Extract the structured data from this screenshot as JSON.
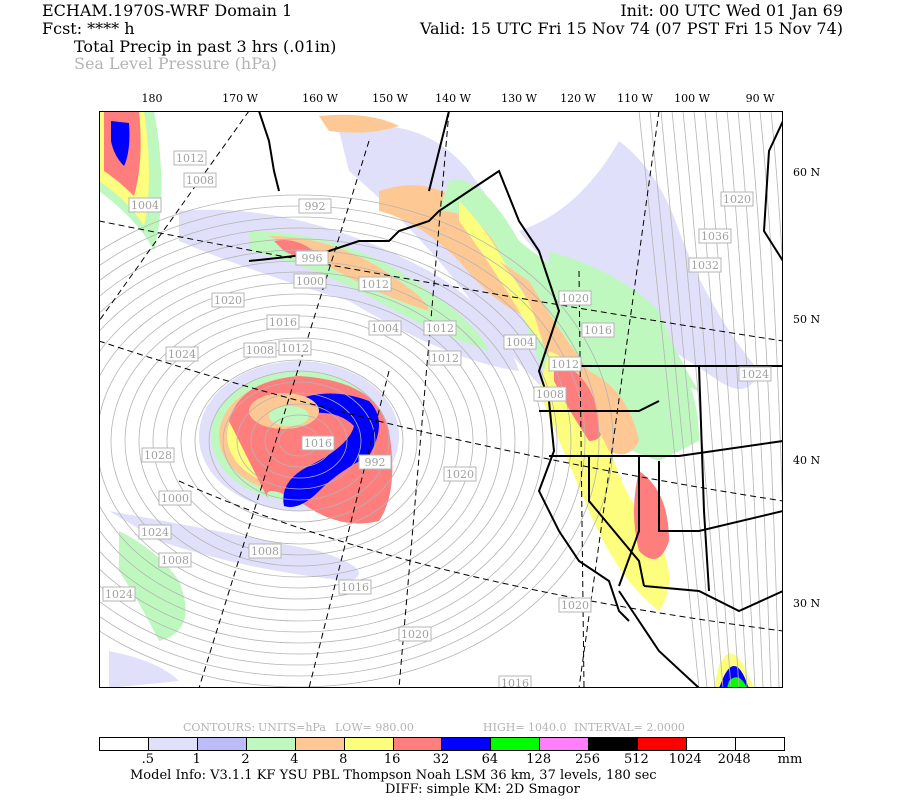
{
  "header": {
    "model_title": "ECHAM.1970S-WRF Domain 1",
    "init": "Init: 00 UTC Wed 01 Jan 69",
    "fcst": "Fcst: **** h",
    "valid": "Valid: 15 UTC Fri 15 Nov 74 (07 PST Fri 15 Nov 74)",
    "field1": "Total Precip in past 3 hrs (.01in)",
    "field2": "Sea Level Pressure (hPa)"
  },
  "map": {
    "lon_labels": [
      "180",
      "170 W",
      "160 W",
      "150 W",
      "140 W",
      "130 W",
      "120 W",
      "110 W",
      "100 W",
      "90 W"
    ],
    "lat_labels": [
      "60 N",
      "50 N",
      "40 N",
      "30 N"
    ],
    "slp_contour_labels": [
      "1012",
      "1008",
      "1004",
      "992",
      "996",
      "1000",
      "1020",
      "1016",
      "1012",
      "1008",
      "1004",
      "1012",
      "1012",
      "1012",
      "1020",
      "1016",
      "1012",
      "1008",
      "1004",
      "1036",
      "1032",
      "1024",
      "1020",
      "1024",
      "1028",
      "992",
      "1000",
      "1008",
      "1008",
      "1016",
      "1016",
      "1024",
      "1024",
      "1020",
      "1020",
      "1020",
      "1016"
    ],
    "colors": {
      "coast": "#000000",
      "contour": "#b4b4b4"
    }
  },
  "contours_info": {
    "label": "CONTOURS:",
    "units": "UNITS=hPa",
    "low": "LOW=   980.00",
    "high": "HIGH=  1040.0",
    "interval": "INTERVAL=   2.0000"
  },
  "colorbar": {
    "colors": [
      "#ffffff",
      "#e0e0fa",
      "#bcbcf8",
      "#bef8be",
      "#fec894",
      "#fefe7e",
      "#fe7e7e",
      "#0000fe",
      "#00fe00",
      "#fe7efe",
      "#000000",
      "#fe0000",
      "#ffffff",
      "#ffffff"
    ],
    "tick_labels": [
      ".5",
      "1",
      "2",
      "4",
      "8",
      "16",
      "32",
      "64",
      "128",
      "256",
      "512",
      "1024",
      "2048"
    ],
    "units": "mm"
  },
  "footer": {
    "model_info": "Model Info: V3.1.1    KF        YSU PBL   Thompson      Noah LSM   36 km,    37 levels,   180 sec",
    "diff": "DIFF: simple KM: 2D Smagor"
  }
}
